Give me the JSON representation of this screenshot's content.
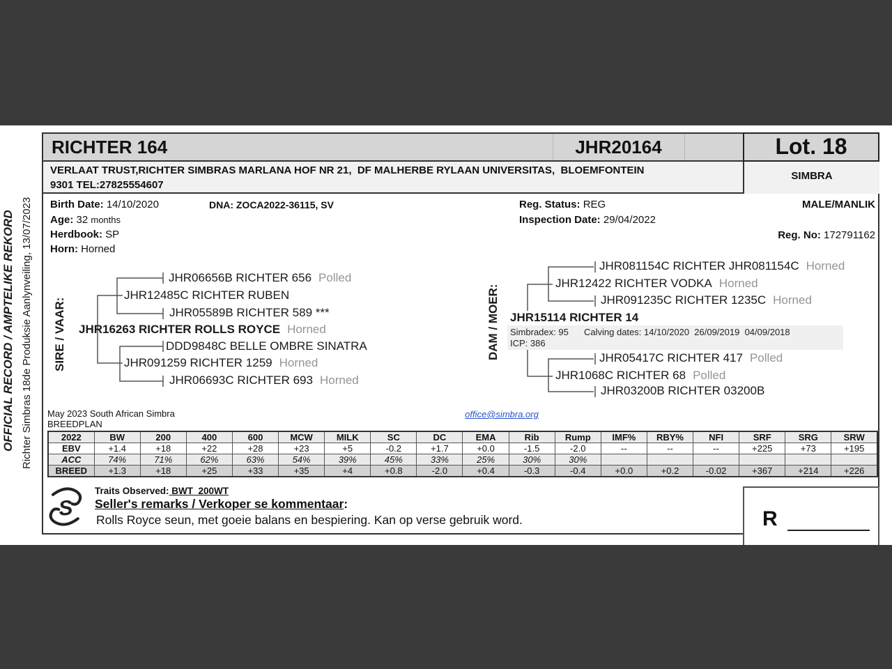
{
  "sidebar": {
    "official": "OFFICIAL RECORD / AMPTELIKE REKORD",
    "event": "Richter Simbras 18de Produksie Aanlynveiling, 13/07/2023"
  },
  "header": {
    "animal_name": "RICHTER 164",
    "reg_id": "JHR20164",
    "lot": "Lot. 18",
    "breed": "SIMBRA",
    "owner_line1": "VERLAAT TRUST,RICHTER SIMBRAS MARLANA HOF NR 21,  DF MALHERBE RYLAAN UNIVERSITAS,  BLOEMFONTEIN",
    "owner_line2": "9301 TEL:27825554607"
  },
  "details": {
    "birth_date_label": "Birth Date:",
    "birth_date": "14/10/2020",
    "age_label": "Age:",
    "age_value": "32",
    "age_unit": "months",
    "herdbook_label": "Herdbook:",
    "herdbook": "SP",
    "horn_label": "Horn:",
    "horn": "Horned",
    "dna": "DNA: ZOCA2022-36115, SV",
    "reg_status_label": "Reg. Status:",
    "reg_status": "REG",
    "inspection_label": "Inspection Date:",
    "inspection_date": "29/04/2022",
    "sex": "MALE/MANLIK",
    "reg_no_label": "Reg. No:",
    "reg_no": "172791162"
  },
  "pedigree": {
    "sire": {
      "label": "SIRE / VAAR:",
      "name": "JHR16263 RICHTER ROLLS ROYCE",
      "horn": "Horned",
      "parents": [
        {
          "name": "JHR12485C RICHTER RUBEN",
          "horn": "",
          "parents": [
            {
              "name": "JHR06656B RICHTER 656",
              "horn": "Polled"
            },
            {
              "name": "JHR05589B RICHTER 589 ***",
              "horn": ""
            }
          ]
        },
        {
          "name": "JHR091259 RICHTER 1259",
          "horn": "Horned",
          "parents": [
            {
              "name": "DDD9848C BELLE OMBRE SINATRA",
              "horn": ""
            },
            {
              "name": "JHR06693C RICHTER 693",
              "horn": "Horned"
            }
          ]
        }
      ]
    },
    "dam": {
      "label": "DAM / MOER:",
      "name": "JHR15114 RICHTER 14",
      "horn": "",
      "stats": {
        "simbradex": "Simbradex: 95",
        "calving": "Calving dates: 14/10/2020  26/09/2019  04/09/2018",
        "icp": "ICP: 386"
      },
      "parents": [
        {
          "name": "JHR12422 RICHTER VODKA",
          "horn": "Horned",
          "parents": [
            {
              "name": "JHR081154C RICHTER JHR081154C",
              "horn": "Horned"
            },
            {
              "name": "JHR091235C RICHTER 1235C",
              "horn": "Horned"
            }
          ]
        },
        {
          "name": "JHR1068C RICHTER 68",
          "horn": "Polled",
          "parents": [
            {
              "name": "JHR05417C RICHTER 417",
              "horn": "Polled"
            },
            {
              "name": "JHR03200B RICHTER 03200B",
              "horn": ""
            }
          ]
        }
      ]
    }
  },
  "breedplan": {
    "note_line1": "May 2023 South African Simbra",
    "note_line2": "BREEDPLAN",
    "email": "office@simbra.org",
    "columns": [
      "2022",
      "BW",
      "200",
      "400",
      "600",
      "MCW",
      "MILK",
      "SC",
      "DC",
      "EMA",
      "Rib",
      "Rump",
      "IMF%",
      "RBY%",
      "NFI",
      "SRF",
      "SRG",
      "SRW"
    ],
    "rows": [
      {
        "label": "EBV",
        "style": "ebv",
        "values": [
          "+1.4",
          "+18",
          "+22",
          "+28",
          "+23",
          "+5",
          "-0.2",
          "+1.7",
          "+0.0",
          "-1.5",
          "-2.0",
          "--",
          "--",
          "--",
          "+225",
          "+73",
          "+195"
        ]
      },
      {
        "label": "ACC",
        "style": "acc",
        "values": [
          "74%",
          "71%",
          "62%",
          "63%",
          "54%",
          "39%",
          "45%",
          "33%",
          "25%",
          "30%",
          "30%",
          "",
          "",
          "",
          "",
          "",
          ""
        ]
      },
      {
        "label": "BREED",
        "style": "breed",
        "values": [
          "+1.3",
          "+18",
          "+25",
          "+33",
          "+35",
          "+4",
          "+0.8",
          "-2.0",
          "+0.4",
          "-0.3",
          "-0.4",
          "+0.0",
          "+0.2",
          "-0.02",
          "+367",
          "+214",
          "+226"
        ]
      }
    ]
  },
  "footer": {
    "traits_label": "Traits Observed:",
    "traits_value": " BWT  200WT",
    "remarks_heading": "Seller's remarks / Verkoper se kommentaar",
    "remarks_colon": ":",
    "remarks_text": "Rolls Royce seun, met goeie balans en bespiering. Kan op verse gebruik word.",
    "price_prefix": "R"
  },
  "colors": {
    "band": "#3a3a3a",
    "header_bg": "#d5d5d5",
    "strip_bg": "#f0f0f0",
    "breed_row_bg": "#d2d2d2",
    "horn_gray": "#949494",
    "link_blue": "#2653c9"
  }
}
